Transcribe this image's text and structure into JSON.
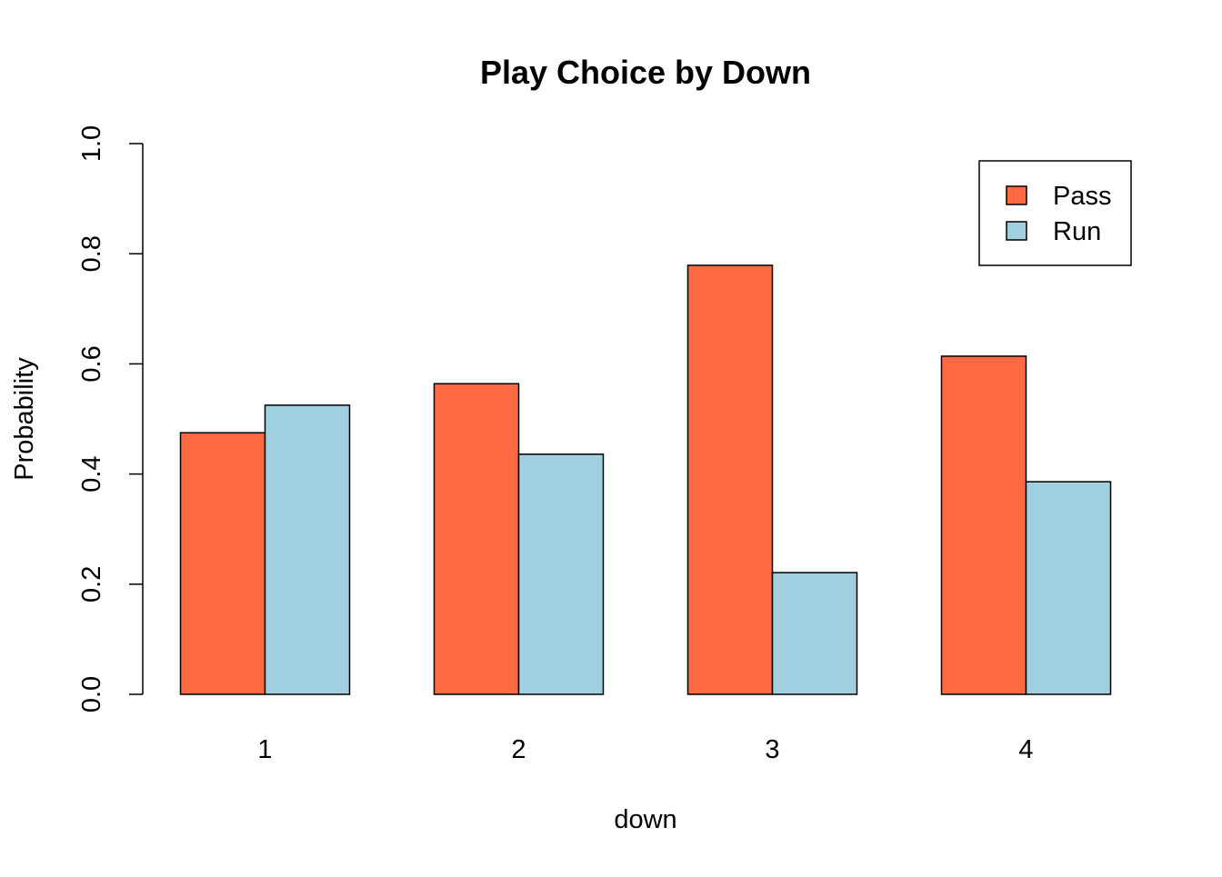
{
  "chart_data": {
    "type": "bar",
    "title": "Play Choice by Down",
    "xlabel": "down",
    "ylabel": "Probability",
    "categories": [
      "1",
      "2",
      "3",
      "4"
    ],
    "series": [
      {
        "name": "Pass",
        "color": "#FF6A43",
        "values": [
          0.475,
          0.564,
          0.779,
          0.614
        ]
      },
      {
        "name": "Run",
        "color": "#A0CFE0",
        "values": [
          0.525,
          0.436,
          0.221,
          0.386
        ]
      }
    ],
    "ylim": [
      0,
      1
    ],
    "yticks": [
      "0.0",
      "0.2",
      "0.4",
      "0.6",
      "0.8",
      "1.0"
    ],
    "grid": false,
    "legend_position": "top-right"
  }
}
